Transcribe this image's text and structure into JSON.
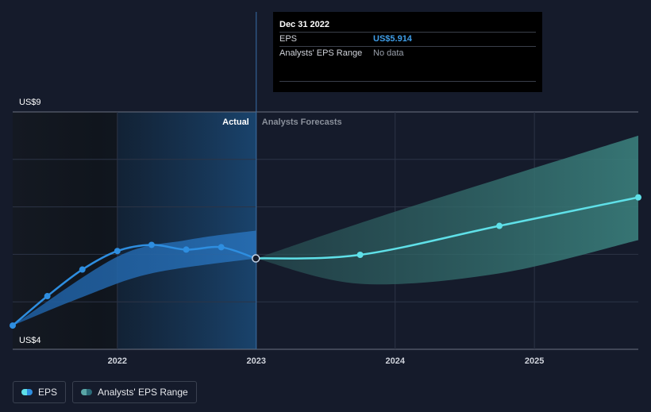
{
  "tooltip": {
    "date": "Dec 31 2022",
    "rows": [
      {
        "label": "EPS",
        "value": "US$5.914"
      },
      {
        "label": "Analysts' EPS Range",
        "value": "No data"
      }
    ]
  },
  "legend": {
    "eps_label": "EPS",
    "range_label": "Analysts' EPS Range"
  },
  "colors": {
    "background": "#151b2b",
    "eps_actual": "#2e8ee0",
    "eps_forecast": "#5fe0e8",
    "range_forecast": "#2e6b6e",
    "range_actual": "#1f5fa0"
  },
  "chart_data": {
    "type": "line",
    "title": "",
    "xlabel": "",
    "ylabel": "",
    "y_tick_labels": [
      "US$9",
      "US$4"
    ],
    "ylim": [
      4,
      9
    ],
    "xlim": [
      "2021-04-01",
      "2025-10-01"
    ],
    "x_ticks": [
      {
        "date": "2022-01-01",
        "label": "2022"
      },
      {
        "date": "2023-01-01",
        "label": "2023"
      },
      {
        "date": "2024-01-01",
        "label": "2024"
      },
      {
        "date": "2025-01-01",
        "label": "2025"
      }
    ],
    "divider_date": "2023-01-01",
    "region_labels": {
      "actual": "Actual",
      "forecast": "Analysts Forecasts"
    },
    "grid": true,
    "legend_position": "bottom-left",
    "series": [
      {
        "name": "EPS",
        "kind": "actual",
        "points": [
          {
            "x": "2021-04-01",
            "y": 4.5
          },
          {
            "x": "2021-07-01",
            "y": 5.12
          },
          {
            "x": "2021-10-01",
            "y": 5.68
          },
          {
            "x": "2022-01-01",
            "y": 6.07
          },
          {
            "x": "2022-04-01",
            "y": 6.2
          },
          {
            "x": "2022-07-01",
            "y": 6.1
          },
          {
            "x": "2022-10-01",
            "y": 6.15
          },
          {
            "x": "2022-12-31",
            "y": 5.914
          }
        ]
      },
      {
        "name": "EPS",
        "kind": "forecast",
        "points": [
          {
            "x": "2022-12-31",
            "y": 5.914
          },
          {
            "x": "2023-10-01",
            "y": 5.99
          },
          {
            "x": "2024-10-01",
            "y": 6.6
          },
          {
            "x": "2025-10-01",
            "y": 7.2
          }
        ]
      }
    ],
    "ranges": [
      {
        "name": "Analysts' EPS Range",
        "kind": "actual",
        "upper": [
          {
            "x": "2021-04-01",
            "y": 4.5
          },
          {
            "x": "2022-01-01",
            "y": 5.95
          },
          {
            "x": "2022-07-01",
            "y": 6.3
          },
          {
            "x": "2022-12-31",
            "y": 6.5
          }
        ],
        "lower": [
          {
            "x": "2021-04-01",
            "y": 4.5
          },
          {
            "x": "2021-10-01",
            "y": 5.1
          },
          {
            "x": "2022-04-01",
            "y": 5.6
          },
          {
            "x": "2022-12-31",
            "y": 5.914
          }
        ]
      },
      {
        "name": "Analysts' EPS Range",
        "kind": "forecast",
        "upper": [
          {
            "x": "2022-12-31",
            "y": 5.914
          },
          {
            "x": "2024-01-01",
            "y": 6.9
          },
          {
            "x": "2025-10-01",
            "y": 8.5
          }
        ],
        "lower": [
          {
            "x": "2022-12-31",
            "y": 5.914
          },
          {
            "x": "2023-10-01",
            "y": 5.38
          },
          {
            "x": "2024-10-01",
            "y": 5.6
          },
          {
            "x": "2025-10-01",
            "y": 6.3
          }
        ]
      }
    ]
  }
}
